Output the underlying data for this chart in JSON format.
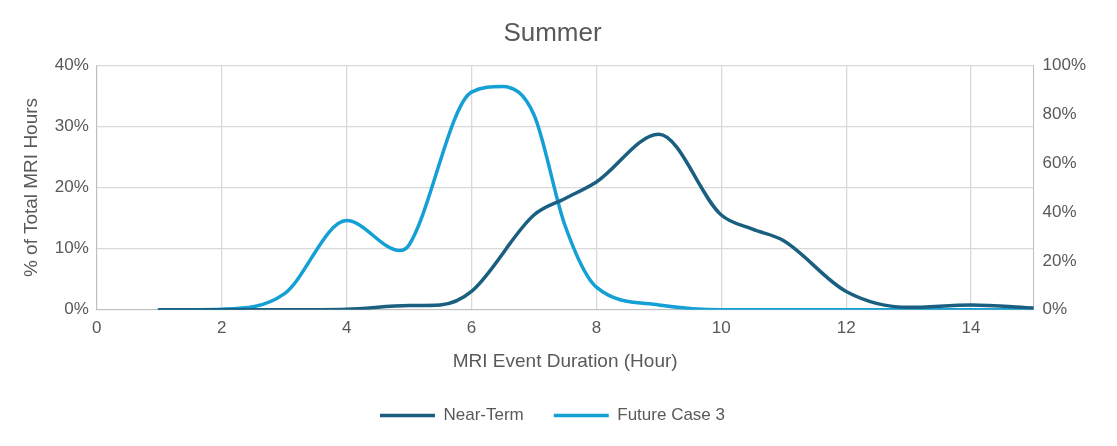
{
  "chart_data": {
    "type": "line",
    "title": "Summer",
    "xlabel": "MRI Event Duration (Hour)",
    "ylabel": "% of Total MRI Hours",
    "xlim": [
      0,
      15
    ],
    "xticks": [
      0,
      2,
      4,
      6,
      8,
      10,
      12,
      14
    ],
    "ylim": [
      0,
      40
    ],
    "yticks": [
      {
        "value": 0,
        "label": "0%"
      },
      {
        "value": 10,
        "label": "10%"
      },
      {
        "value": 20,
        "label": "20%"
      },
      {
        "value": 30,
        "label": "30%"
      },
      {
        "value": 40,
        "label": "40%"
      }
    ],
    "y2lim": [
      0,
      100
    ],
    "y2ticks": [
      {
        "value": 0,
        "label": "0%"
      },
      {
        "value": 20,
        "label": "20%"
      },
      {
        "value": 40,
        "label": "40%"
      },
      {
        "value": 60,
        "label": "60%"
      },
      {
        "value": 80,
        "label": "80%"
      },
      {
        "value": 100,
        "label": "100%"
      }
    ],
    "grid": true,
    "legend": "bottom",
    "marker": "none",
    "line_style": "solid",
    "series": [
      {
        "name": "Near-Term",
        "color": "#1a5f80",
        "x": [
          1,
          2,
          3,
          4,
          5,
          5.5,
          6,
          7,
          7.5,
          8,
          9,
          10,
          10.5,
          11,
          12,
          13,
          14,
          15
        ],
        "values": [
          0,
          0,
          0,
          0.1,
          0.7,
          0.8,
          3,
          15.5,
          18.2,
          20.9,
          28.7,
          15.5,
          13.2,
          11.3,
          3,
          0.4,
          0.8,
          0.3
        ]
      },
      {
        "name": "Future Case 3",
        "color": "#14a0d4",
        "x": [
          1,
          2,
          3,
          4,
          4.85,
          5,
          6,
          6.5,
          7,
          7.5,
          8,
          9,
          10,
          11,
          12,
          13,
          14,
          15
        ],
        "values": [
          0,
          0.1,
          2.6,
          14.6,
          9.7,
          10.6,
          35.6,
          36.5,
          31.9,
          13.7,
          3.7,
          0.8,
          0,
          0,
          0,
          0,
          0,
          0
        ]
      }
    ]
  }
}
